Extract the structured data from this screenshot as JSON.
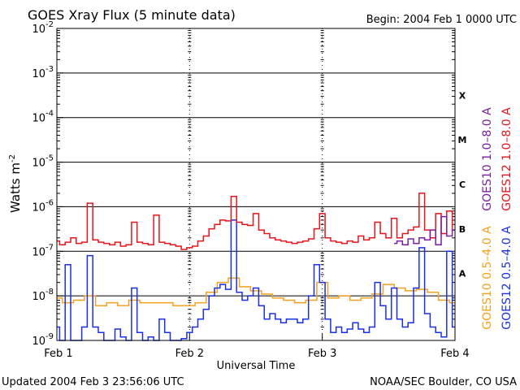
{
  "chart_data": {
    "type": "line",
    "title": "GOES Xray Flux (5 minute data)",
    "begin_label": "Begin:  2004 Feb 1 0000 UTC",
    "updated_label": "Updated 2004 Feb  3 23:56:06 UTC",
    "credit_label": "NOAA/SEC Boulder, CO USA",
    "xlabel": "Universal Time",
    "ylabel_main": "Watts m",
    "ylabel_sup": "-2",
    "y_scale": "log",
    "ylim": [
      1e-09,
      0.01
    ],
    "xlim": [
      0,
      72
    ],
    "x_unit": "hours since 2004 Feb 1 0000 UTC",
    "grid": true,
    "x_ticks": [
      {
        "x": 0,
        "label": "Feb 1"
      },
      {
        "x": 24,
        "label": "Feb 2"
      },
      {
        "x": 48,
        "label": "Feb 3"
      },
      {
        "x": 72,
        "label": "Feb 4"
      }
    ],
    "y_ticks": [
      {
        "exp": -2,
        "base": "10",
        "sup": "-2"
      },
      {
        "exp": -3,
        "base": "10",
        "sup": "-3"
      },
      {
        "exp": -4,
        "base": "10",
        "sup": "-4"
      },
      {
        "exp": -5,
        "base": "10",
        "sup": "-5"
      },
      {
        "exp": -6,
        "base": "10",
        "sup": "-6"
      },
      {
        "exp": -7,
        "base": "10",
        "sup": "-7"
      },
      {
        "exp": -8,
        "base": "10",
        "sup": "-8"
      },
      {
        "exp": -9,
        "base": "10",
        "sup": "-9"
      }
    ],
    "flare_classes": [
      {
        "label": "X",
        "exp": -3.5
      },
      {
        "label": "M",
        "exp": -4.5
      },
      {
        "label": "C",
        "exp": -5.5
      },
      {
        "label": "B",
        "exp": -6.5
      },
      {
        "label": "A",
        "exp": -7.5
      }
    ],
    "legend": {
      "long": [
        {
          "text": "GOES10 1.0–8.0 A",
          "color": "#7a1fa2"
        },
        {
          "text": "GOES12 1.0–8.0 A",
          "color": "#e8141b"
        }
      ],
      "short": [
        {
          "text": "GOES10 0.5–4.0 A",
          "color": "#f4a11c"
        },
        {
          "text": "GOES12 0.5–4.0 A",
          "color": "#1930e8"
        }
      ]
    },
    "series": [
      {
        "name": "GOES10 1.0–8.0 A",
        "color": "#7a1fa2",
        "x": [
          61,
          62,
          63,
          64,
          65,
          66,
          67,
          68,
          69,
          70,
          71,
          72
        ],
        "y": [
          1.5e-07,
          1.7e-07,
          1.4e-07,
          1.9e-07,
          1.5e-07,
          2e-07,
          1.8e-07,
          3e-07,
          1.4e-07,
          6e-07,
          2.2e-07,
          3e-07
        ]
      },
      {
        "name": "GOES12 1.0–8.0 A",
        "color": "#e8141b",
        "x": [
          0,
          1,
          2,
          3,
          4,
          5,
          6,
          7,
          8,
          9,
          10,
          11,
          12,
          13,
          14,
          15,
          16,
          17,
          18,
          19,
          20,
          21,
          22,
          23,
          24,
          25,
          26,
          27,
          28,
          29,
          30,
          31,
          32,
          33,
          34,
          35,
          36,
          37,
          38,
          39,
          40,
          41,
          42,
          43,
          44,
          45,
          46,
          47,
          48,
          49,
          50,
          51,
          52,
          53,
          54,
          55,
          56,
          57,
          58,
          59,
          60,
          61,
          62,
          63,
          64,
          65,
          66,
          67,
          68,
          69,
          70,
          71,
          72
        ],
        "y": [
          1.7e-07,
          1.4e-07,
          1.6e-07,
          2e-07,
          1.5e-07,
          1.6e-07,
          1.2e-06,
          1.8e-07,
          1.6e-07,
          1.5e-07,
          1.4e-07,
          1.6e-07,
          1.3e-07,
          1.4e-07,
          4.5e-07,
          1.6e-07,
          1.5e-07,
          1.4e-07,
          6.5e-07,
          1.6e-07,
          1.5e-07,
          1.4e-07,
          1.3e-07,
          1.1e-07,
          1.2e-07,
          1.3e-07,
          1.7e-07,
          2.2e-07,
          3.2e-07,
          4e-07,
          5e-07,
          4.8e-07,
          1.7e-06,
          4.5e-07,
          4e-07,
          3.8e-07,
          7e-07,
          3e-07,
          2.5e-07,
          2e-07,
          1.8e-07,
          1.7e-07,
          1.6e-07,
          1.5e-07,
          1.6e-07,
          1.7e-07,
          1.9e-07,
          3.2e-07,
          7e-07,
          2e-07,
          1.7e-07,
          1.6e-07,
          1.5e-07,
          1.7e-07,
          1.6e-07,
          2.2e-07,
          1.8e-07,
          2e-07,
          4.5e-07,
          2.5e-07,
          2e-07,
          5.5e-07,
          2e-07,
          2.5e-07,
          3e-07,
          3.5e-07,
          2e-06,
          3e-07,
          2e-07,
          7e-07,
          2.5e-07,
          8e-07,
          3e-07
        ]
      },
      {
        "name": "GOES10 0.5–4.0 A",
        "color": "#f4a11c",
        "x": [
          0,
          2,
          4,
          6,
          8,
          10,
          12,
          14,
          16,
          18,
          20,
          22,
          24,
          26,
          28,
          30,
          32,
          34,
          36,
          38,
          40,
          42,
          44,
          46,
          48,
          50,
          52,
          54,
          56,
          58,
          60,
          62,
          64,
          66,
          68,
          70,
          72
        ],
        "y": [
          9e-09,
          7e-09,
          8e-09,
          1e-08,
          6e-09,
          7e-09,
          6e-09,
          8e-09,
          7e-09,
          7e-09,
          7e-09,
          6e-09,
          6e-09,
          7e-09,
          1.2e-08,
          2e-08,
          2.5e-08,
          1.6e-08,
          1.3e-08,
          1.1e-08,
          9e-09,
          8e-09,
          7e-09,
          8e-09,
          2e-08,
          9e-09,
          1e-08,
          8e-09,
          9e-09,
          1.1e-08,
          1.8e-08,
          1.5e-08,
          1.3e-08,
          1.4e-08,
          1.2e-08,
          8e-09,
          7e-09
        ]
      },
      {
        "name": "GOES12 0.5–4.0 A",
        "color": "#1930e8",
        "x": [
          0,
          1,
          2,
          3,
          4,
          5,
          6,
          7,
          8,
          9,
          10,
          11,
          12,
          13,
          14,
          15,
          16,
          17,
          18,
          19,
          20,
          21,
          22,
          23,
          24,
          25,
          26,
          27,
          28,
          29,
          30,
          31,
          32,
          33,
          34,
          35,
          36,
          37,
          38,
          39,
          40,
          41,
          42,
          43,
          44,
          45,
          46,
          47,
          48,
          49,
          50,
          51,
          52,
          53,
          54,
          55,
          56,
          57,
          58,
          59,
          60,
          61,
          62,
          63,
          64,
          65,
          66,
          67,
          68,
          69,
          70,
          71,
          72
        ],
        "y": [
          2e-09,
          1e-09,
          5e-08,
          1e-09,
          1e-09,
          2e-09,
          8e-08,
          2e-09,
          1.5e-09,
          1e-09,
          1e-09,
          1.8e-09,
          1.2e-09,
          1e-09,
          1.5e-08,
          1.5e-09,
          1e-09,
          1.2e-09,
          1e-09,
          3e-09,
          1.5e-09,
          1e-09,
          1e-09,
          1.1e-09,
          1.5e-09,
          2e-09,
          3e-09,
          5e-09,
          1e-08,
          1.5e-08,
          1.8e-08,
          1.4e-08,
          5e-07,
          1.2e-08,
          8e-09,
          1e-08,
          1.5e-08,
          6e-09,
          3e-09,
          4e-09,
          3e-09,
          2.5e-09,
          3e-09,
          3e-09,
          2.5e-09,
          3e-09,
          1e-08,
          5e-08,
          2e-08,
          3e-09,
          1.5e-09,
          2e-09,
          1.5e-09,
          1.8e-09,
          2.5e-09,
          1.8e-09,
          1.5e-09,
          2e-09,
          2e-08,
          6e-09,
          3e-09,
          1.5e-08,
          3e-09,
          2e-09,
          2.5e-09,
          1.5e-08,
          1.2e-07,
          4e-09,
          2e-09,
          1.5e-09,
          1.2e-09,
          1e-07,
          2e-09
        ]
      }
    ]
  }
}
